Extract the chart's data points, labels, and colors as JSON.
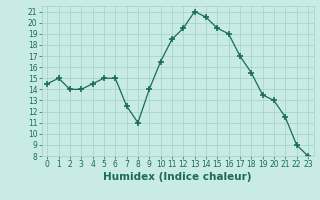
{
  "x": [
    0,
    1,
    2,
    3,
    4,
    5,
    6,
    7,
    8,
    9,
    10,
    11,
    12,
    13,
    14,
    15,
    16,
    17,
    18,
    19,
    20,
    21,
    22,
    23
  ],
  "y": [
    14.5,
    15.0,
    14.0,
    14.0,
    14.5,
    15.0,
    15.0,
    12.5,
    11.0,
    14.0,
    16.5,
    18.5,
    19.5,
    21.0,
    20.5,
    19.5,
    19.0,
    17.0,
    15.5,
    13.5,
    13.0,
    11.5,
    9.0,
    8.0
  ],
  "line_color": "#1a6b5a",
  "marker": "+",
  "marker_size": 4,
  "bg_color": "#c8ebe5",
  "grid_color": "#a8d4cc",
  "xlabel": "Humidex (Indice chaleur)",
  "ylim": [
    8,
    21.5
  ],
  "xlim": [
    -0.5,
    23.5
  ],
  "yticks": [
    8,
    9,
    10,
    11,
    12,
    13,
    14,
    15,
    16,
    17,
    18,
    19,
    20,
    21
  ],
  "xticks": [
    0,
    1,
    2,
    3,
    4,
    5,
    6,
    7,
    8,
    9,
    10,
    11,
    12,
    13,
    14,
    15,
    16,
    17,
    18,
    19,
    20,
    21,
    22,
    23
  ],
  "tick_fontsize": 5.5,
  "xlabel_fontsize": 7.5,
  "label_color": "#1a6b5a",
  "linewidth": 0.9,
  "marker_thickness": 1.2
}
